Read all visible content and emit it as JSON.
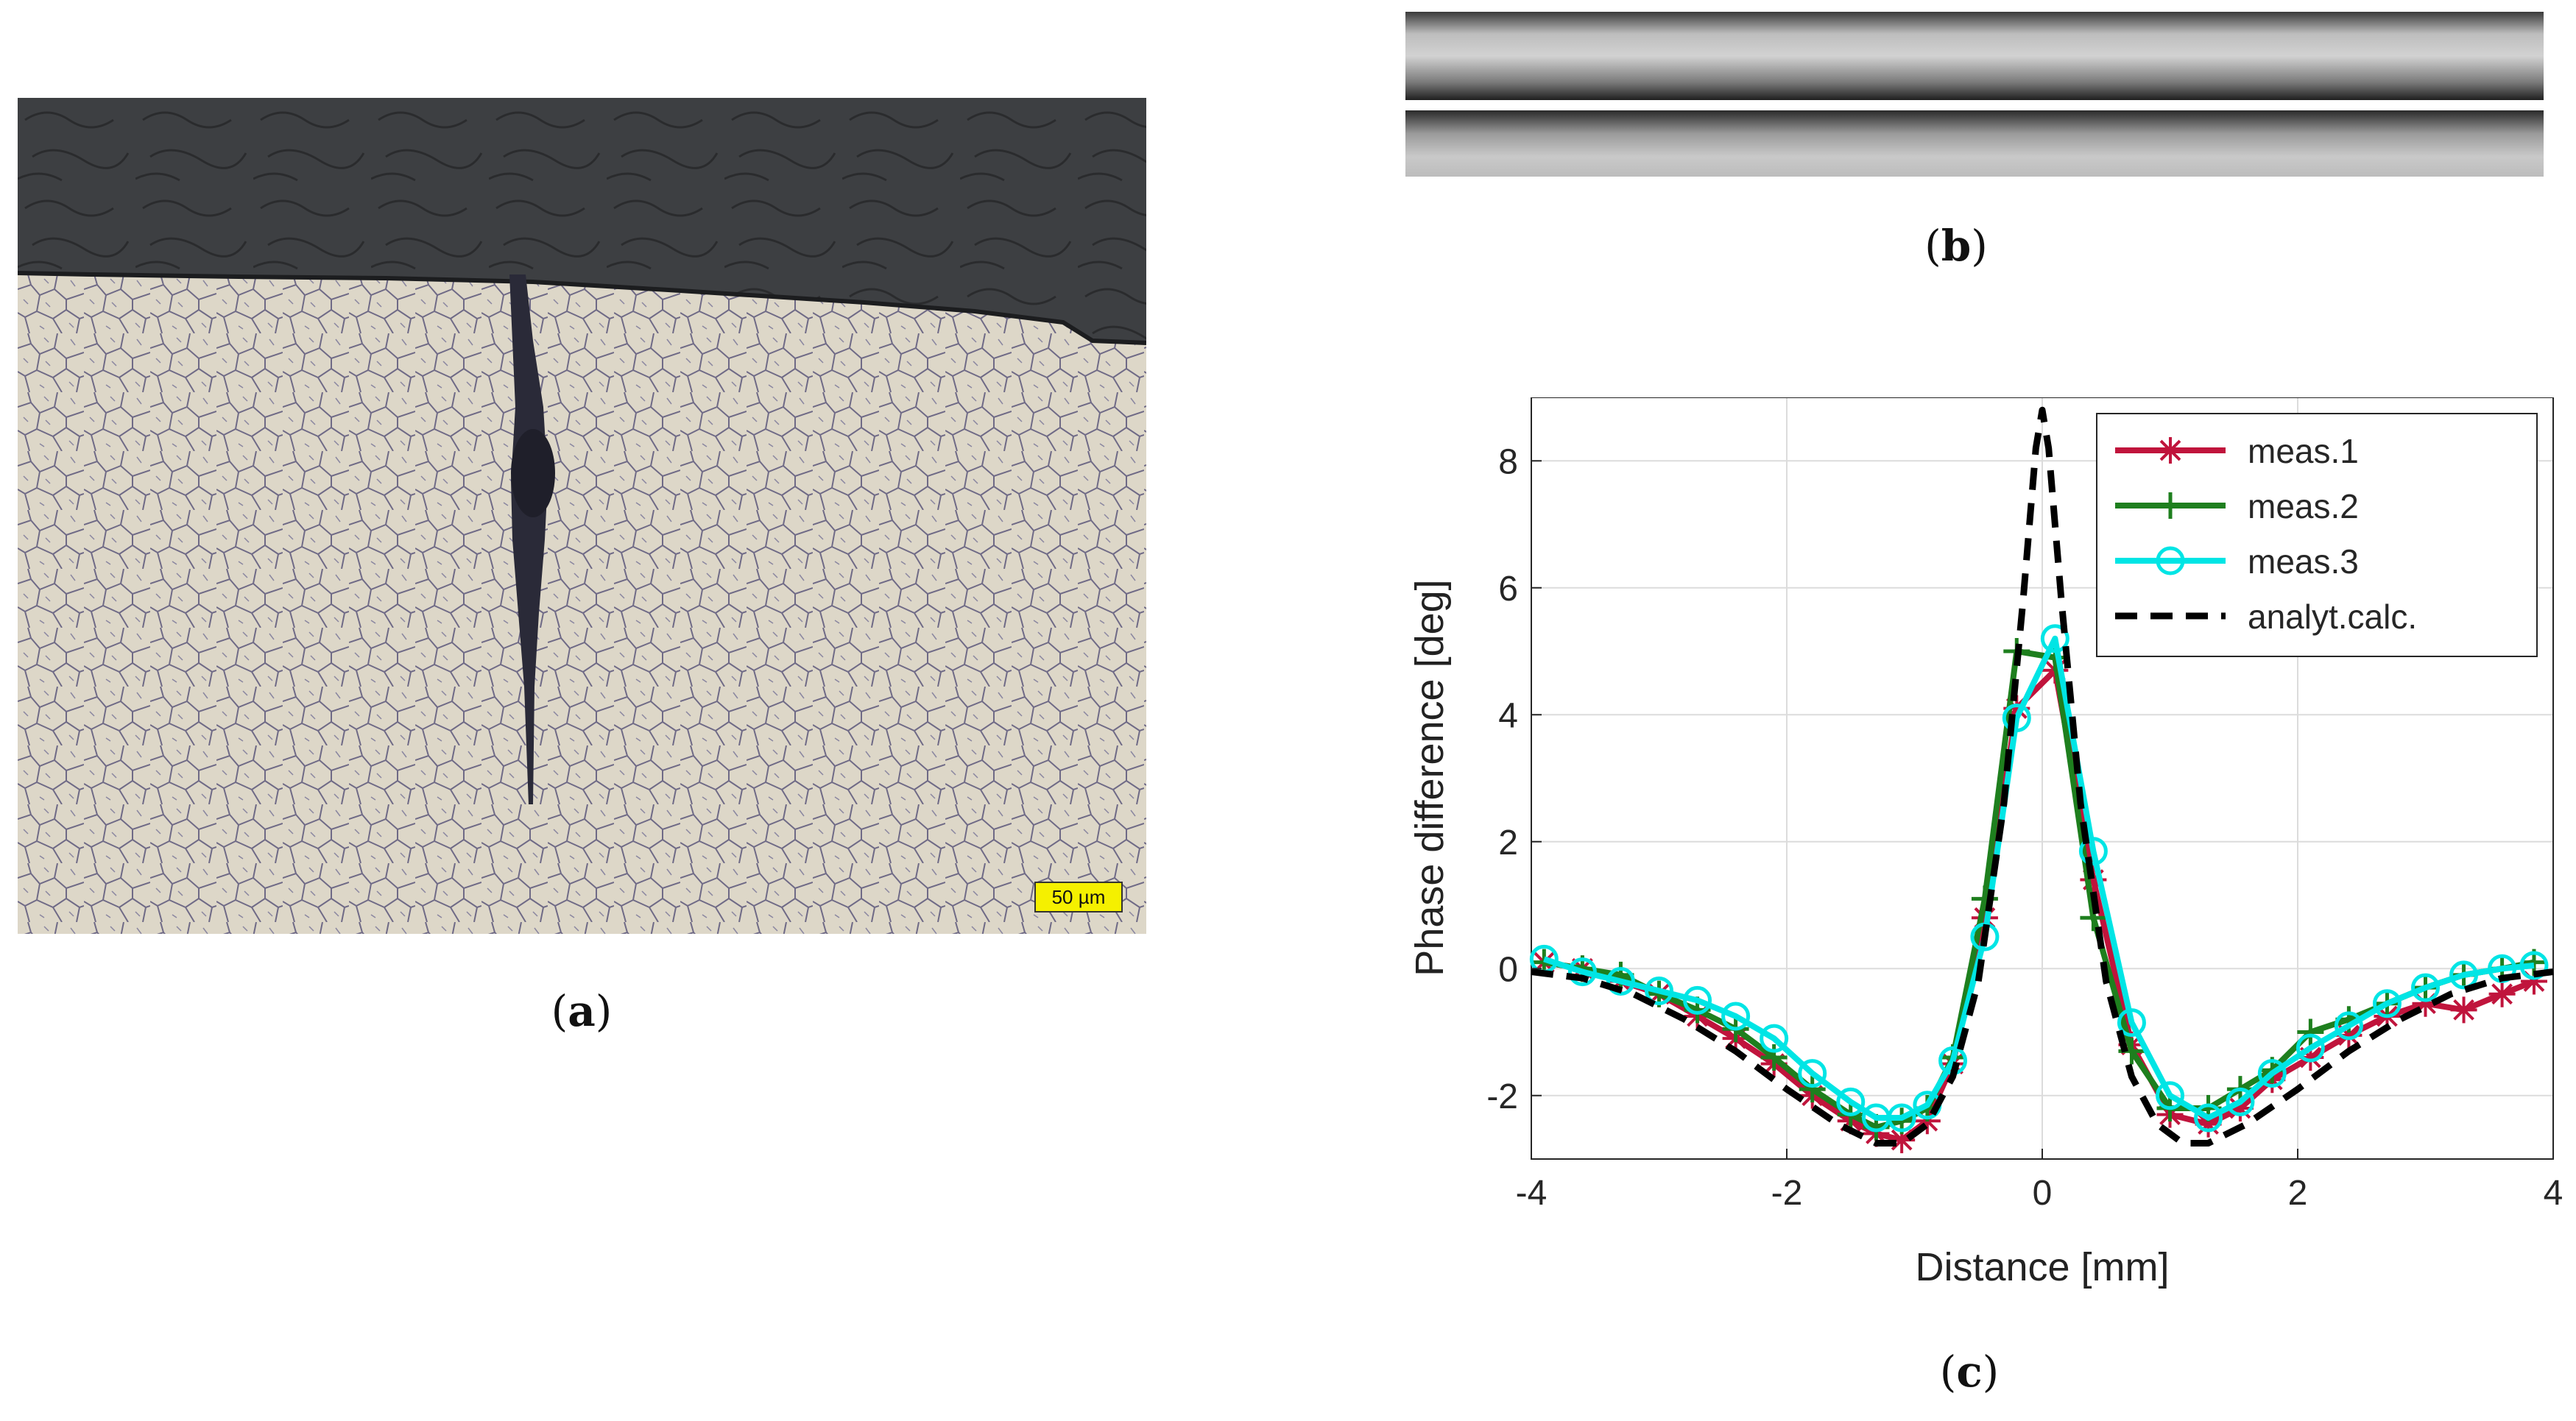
{
  "panels": {
    "a": {
      "label": "a",
      "scale_bar": "50 µm"
    },
    "b": {
      "label": "b"
    },
    "c": {
      "label": "c"
    }
  },
  "chart_data": {
    "type": "line",
    "xlabel": "Distance [mm]",
    "ylabel": "Phase difference [deg]",
    "xlim": [
      -4,
      4
    ],
    "ylim": [
      -3,
      9
    ],
    "xticks": [
      -4,
      -2,
      0,
      2,
      4
    ],
    "yticks": [
      -2,
      0,
      2,
      4,
      6,
      8
    ],
    "grid": true,
    "legend_position": "top-right",
    "series": [
      {
        "name": "meas.1",
        "color": "#c0143c",
        "marker": "asterisk",
        "style": "solid",
        "x": [
          -3.9,
          -3.6,
          -3.3,
          -3.0,
          -2.7,
          -2.4,
          -2.1,
          -1.8,
          -1.5,
          -1.3,
          -1.1,
          -0.9,
          -0.7,
          -0.45,
          -0.2,
          0.1,
          0.4,
          0.7,
          1.0,
          1.3,
          1.55,
          1.8,
          2.1,
          2.4,
          2.7,
          3.0,
          3.3,
          3.6,
          3.85
        ],
        "y": [
          0.1,
          0.0,
          -0.2,
          -0.4,
          -0.75,
          -1.1,
          -1.5,
          -2.0,
          -2.4,
          -2.6,
          -2.7,
          -2.4,
          -1.5,
          0.8,
          4.1,
          4.7,
          1.4,
          -1.2,
          -2.3,
          -2.45,
          -2.2,
          -1.75,
          -1.4,
          -1.05,
          -0.75,
          -0.55,
          -0.65,
          -0.4,
          -0.2
        ]
      },
      {
        "name": "meas.2",
        "color": "#1e7f1e",
        "marker": "plus",
        "style": "solid",
        "x": [
          -3.9,
          -3.6,
          -3.3,
          -3.0,
          -2.7,
          -2.4,
          -2.1,
          -1.8,
          -1.5,
          -1.3,
          -1.1,
          -0.9,
          -0.7,
          -0.45,
          -0.2,
          0.1,
          0.4,
          0.7,
          1.0,
          1.3,
          1.55,
          1.8,
          2.1,
          2.4,
          2.7,
          3.0,
          3.3,
          3.6,
          3.85
        ],
        "y": [
          0.1,
          0.0,
          -0.1,
          -0.4,
          -0.65,
          -0.95,
          -1.4,
          -1.9,
          -2.3,
          -2.5,
          -2.4,
          -2.2,
          -1.4,
          1.1,
          5.0,
          4.9,
          0.8,
          -1.3,
          -2.2,
          -2.2,
          -1.9,
          -1.6,
          -1.0,
          -0.8,
          -0.55,
          -0.3,
          -0.1,
          0.0,
          0.1
        ]
      },
      {
        "name": "meas.3",
        "color": "#00e5e5",
        "marker": "circle",
        "style": "solid",
        "x": [
          -3.9,
          -3.6,
          -3.3,
          -3.0,
          -2.7,
          -2.4,
          -2.1,
          -1.8,
          -1.5,
          -1.3,
          -1.1,
          -0.9,
          -0.7,
          -0.45,
          -0.2,
          0.1,
          0.4,
          0.7,
          1.0,
          1.3,
          1.55,
          1.8,
          2.1,
          2.4,
          2.7,
          3.0,
          3.3,
          3.6,
          3.85
        ],
        "y": [
          0.15,
          -0.05,
          -0.2,
          -0.35,
          -0.5,
          -0.75,
          -1.1,
          -1.65,
          -2.1,
          -2.35,
          -2.35,
          -2.15,
          -1.45,
          0.5,
          3.95,
          5.2,
          1.85,
          -0.85,
          -2.0,
          -2.35,
          -2.1,
          -1.65,
          -1.25,
          -0.9,
          -0.55,
          -0.3,
          -0.1,
          0.0,
          0.05
        ]
      },
      {
        "name": "analyt.calc.",
        "color": "#000000",
        "marker": "none",
        "style": "dashed",
        "x": [
          -4.0,
          -3.6,
          -3.2,
          -2.8,
          -2.4,
          -2.0,
          -1.6,
          -1.3,
          -1.1,
          -0.9,
          -0.7,
          -0.5,
          -0.3,
          -0.15,
          -0.05,
          0.0,
          0.05,
          0.15,
          0.3,
          0.5,
          0.7,
          0.9,
          1.1,
          1.3,
          1.6,
          2.0,
          2.4,
          2.8,
          3.2,
          3.6,
          4.0
        ],
        "y": [
          -0.05,
          -0.15,
          -0.4,
          -0.8,
          -1.3,
          -1.9,
          -2.45,
          -2.75,
          -2.75,
          -2.45,
          -1.7,
          -0.2,
          2.6,
          5.8,
          8.2,
          8.8,
          8.2,
          5.8,
          2.6,
          -0.2,
          -1.7,
          -2.45,
          -2.75,
          -2.75,
          -2.45,
          -1.9,
          -1.3,
          -0.8,
          -0.4,
          -0.15,
          -0.05
        ]
      }
    ]
  }
}
